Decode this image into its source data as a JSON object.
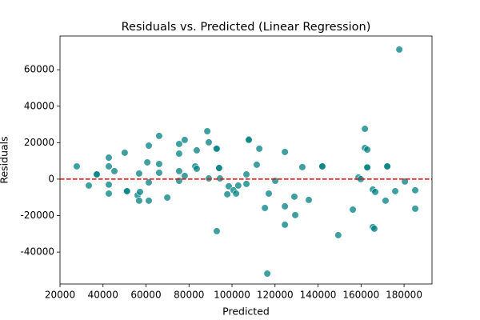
{
  "chart_data": {
    "type": "scatter",
    "title": "Residuals vs. Predicted (Linear Regression)",
    "x_label": "Predicted",
    "y_label": "Residuals",
    "xlim": [
      20000,
      193000
    ],
    "ylim": [
      -57500,
      78500
    ],
    "xticks": [
      20000,
      40000,
      60000,
      80000,
      100000,
      120000,
      140000,
      160000,
      180000
    ],
    "yticks": [
      -40000,
      -20000,
      0,
      20000,
      40000,
      60000
    ],
    "color": "#008080",
    "reference_line": {
      "y": 0,
      "color": "#ff0000",
      "style": "dashed"
    },
    "x": [
      27800,
      33400,
      37100,
      37100,
      42700,
      42700,
      42700,
      42700,
      45300,
      50100,
      50900,
      51200,
      56100,
      56800,
      57200,
      56800,
      60600,
      61300,
      61300,
      61300,
      66100,
      66100,
      66100,
      69900,
      75400,
      75400,
      75400,
      75400,
      78000,
      78000,
      82900,
      83600,
      83600,
      88500,
      89200,
      89200,
      92600,
      92900,
      94000,
      94000,
      94400,
      92900,
      97800,
      98500,
      100700,
      101900,
      102900,
      106700,
      107800,
      107800,
      106700,
      111500,
      112700,
      115300,
      117100,
      116400,
      120100,
      124600,
      124600,
      124600,
      129000,
      129400,
      132700,
      135700,
      142000,
      142000,
      149400,
      156200,
      158800,
      159900,
      161800,
      161800,
      162900,
      162900,
      162900,
      165500,
      166600,
      165500,
      166200,
      171400,
      172200,
      172200,
      175900,
      177800,
      180400,
      185200,
      185200
    ],
    "values": [
      7000,
      -3500,
      2600,
      2600,
      11800,
      7000,
      -3000,
      -7900,
      4400,
      14500,
      -6600,
      -6600,
      -8800,
      3100,
      -7000,
      -11800,
      9200,
      18400,
      -1800,
      -11800,
      8300,
      3500,
      23700,
      -10100,
      19300,
      14000,
      4400,
      -900,
      21500,
      1800,
      7000,
      15800,
      5700,
      26300,
      20200,
      400,
      16700,
      16700,
      6100,
      6100,
      400,
      -28500,
      -8300,
      -3900,
      -6100,
      -7900,
      -3500,
      2600,
      21900,
      21500,
      -2600,
      7900,
      16700,
      -15800,
      -7900,
      -51800,
      -900,
      14900,
      -14900,
      -25000,
      -9600,
      -19700,
      6600,
      -11400,
      7000,
      7000,
      -30700,
      -16700,
      900,
      0,
      27600,
      17100,
      16200,
      6600,
      6400,
      -5700,
      -7000,
      -26300,
      -27200,
      -11800,
      7000,
      7000,
      -6600,
      71100,
      -1300,
      -6100,
      -16200
    ]
  }
}
